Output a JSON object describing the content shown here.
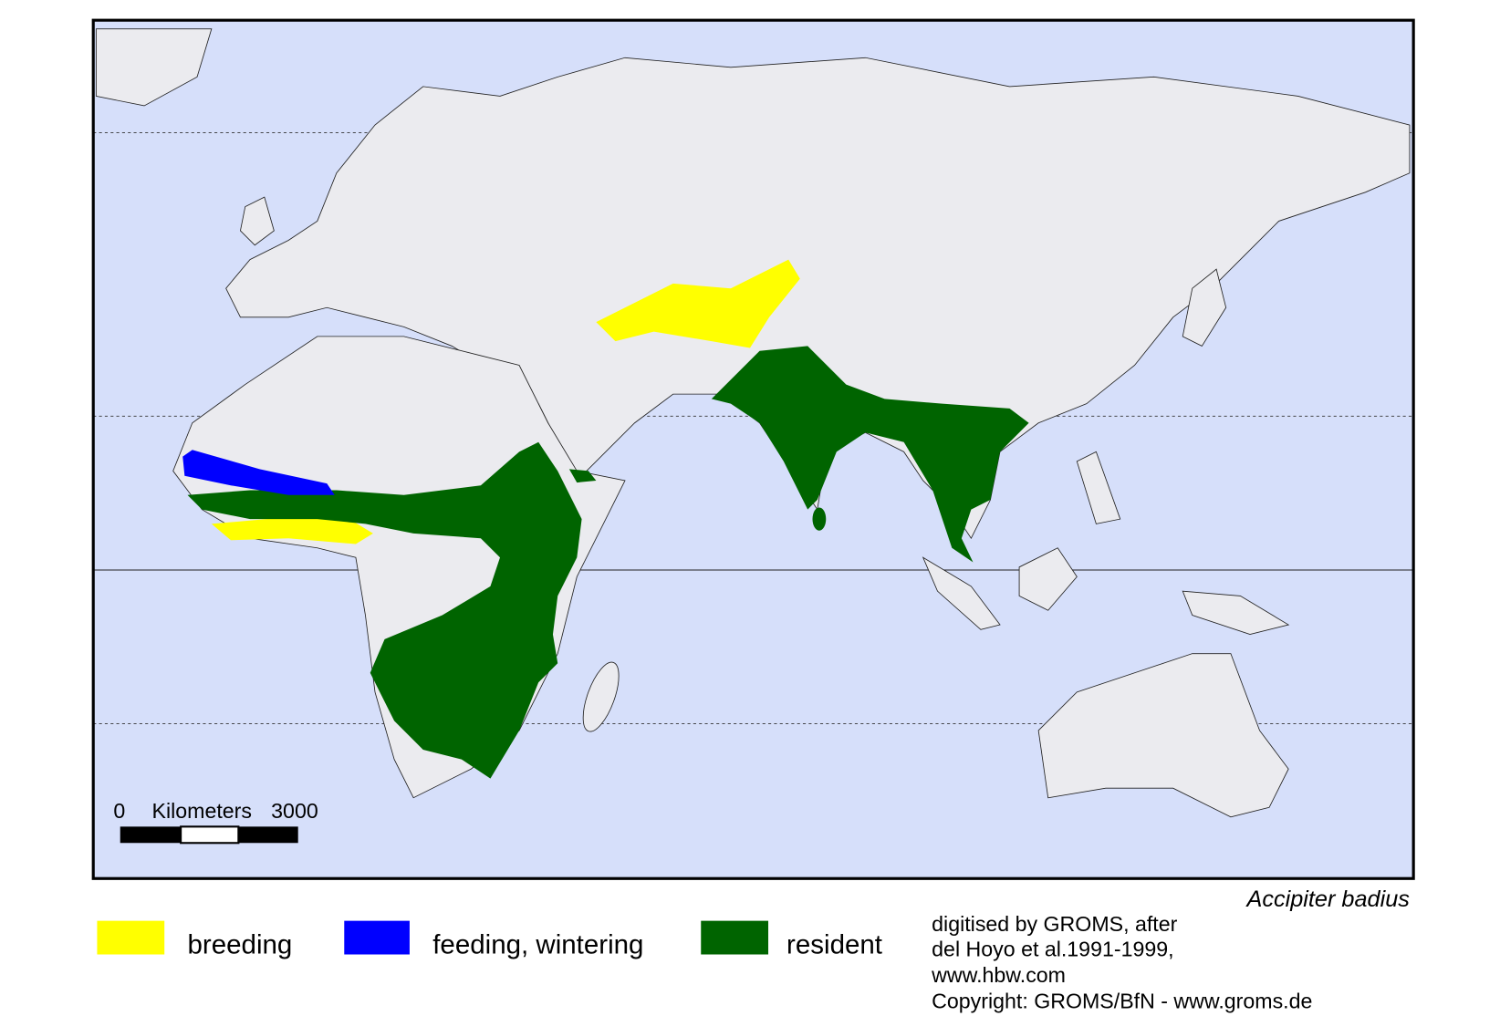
{
  "map": {
    "species": "Accipiter badius",
    "scale_bar": {
      "start": "0",
      "unit": "Kilometers",
      "end": "3000"
    },
    "legend": [
      {
        "label": "breeding",
        "color": "#ffff00"
      },
      {
        "label": "feeding, wintering",
        "color": "#0000ff"
      },
      {
        "label": "resident",
        "color": "#006400"
      }
    ],
    "credits": [
      "digitised by GROMS, after",
      "del Hoyo et al.1991-1999,",
      "www.hbw.com",
      "Copyright: GROMS/BfN - www.groms.de"
    ]
  }
}
